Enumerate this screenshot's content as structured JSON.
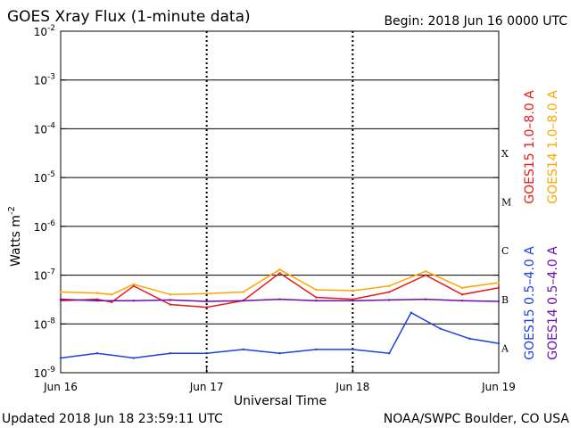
{
  "chart_data": {
    "type": "line",
    "title": "GOES Xray Flux (1-minute data)",
    "begin_label": "Begin:  2018 Jun 16 0000 UTC",
    "ylabel_base": "Watts m",
    "ylabel_exp": "-2",
    "xlabel": "Universal Time",
    "y_scale": "log",
    "ylim_exp": [
      -9,
      -2
    ],
    "y_ticks": [
      {
        "exp": -9,
        "mantissa": "10",
        "power": "-9"
      },
      {
        "exp": -8,
        "mantissa": "10",
        "power": "-8"
      },
      {
        "exp": -7,
        "mantissa": "10",
        "power": "-7"
      },
      {
        "exp": -6,
        "mantissa": "10",
        "power": "-6"
      },
      {
        "exp": -5,
        "mantissa": "10",
        "power": "-5"
      },
      {
        "exp": -4,
        "mantissa": "10",
        "power": "-4"
      },
      {
        "exp": -3,
        "mantissa": "10",
        "power": "-3"
      },
      {
        "exp": -2,
        "mantissa": "10",
        "power": "-2"
      }
    ],
    "x_ticks": [
      "Jun 16",
      "Jun 17",
      "Jun 18",
      "Jun 19"
    ],
    "x_range_days": [
      0,
      3
    ],
    "flare_classes": [
      {
        "label": "X",
        "level_exp": -4
      },
      {
        "label": "M",
        "level_exp": -5
      },
      {
        "label": "C",
        "level_exp": -6
      },
      {
        "label": "B",
        "level_exp": -7
      },
      {
        "label": "A",
        "level_exp": -8
      }
    ],
    "series": [
      {
        "name": "GOES15 1.0–8.0 A",
        "color": "#e8191b",
        "channel": "long",
        "x": [
          0,
          0.25,
          0.35,
          0.5,
          0.75,
          1.0,
          1.25,
          1.5,
          1.75,
          2.0,
          2.25,
          2.5,
          2.75,
          3.0
        ],
        "values": [
          3e-08,
          3.2e-08,
          2.8e-08,
          6e-08,
          2.5e-08,
          2.2e-08,
          3e-08,
          1.1e-07,
          3.5e-08,
          3.2e-08,
          4.5e-08,
          1e-07,
          4e-08,
          5.5e-08
        ]
      },
      {
        "name": "GOES14 1.0–8.0 A",
        "color": "#ffa500",
        "channel": "long",
        "x": [
          0,
          0.25,
          0.35,
          0.5,
          0.75,
          1.0,
          1.25,
          1.5,
          1.75,
          2.0,
          2.25,
          2.5,
          2.75,
          3.0
        ],
        "values": [
          4.5e-08,
          4.3e-08,
          4e-08,
          6.5e-08,
          4e-08,
          4.2e-08,
          4.5e-08,
          1.3e-07,
          5e-08,
          4.8e-08,
          6e-08,
          1.2e-07,
          5.5e-08,
          7e-08
        ]
      },
      {
        "name": "GOES15 0.5–4.0 A",
        "color": "#1f3fe0",
        "channel": "short",
        "x": [
          0,
          0.25,
          0.5,
          0.75,
          1.0,
          1.25,
          1.5,
          1.75,
          2.0,
          2.25,
          2.4,
          2.6,
          2.8,
          3.0
        ],
        "values": [
          2e-09,
          2.5e-09,
          2e-09,
          2.5e-09,
          2.5e-09,
          3e-09,
          2.5e-09,
          3e-09,
          3e-09,
          2.5e-09,
          1.7e-08,
          8e-09,
          5e-09,
          4e-09
        ]
      },
      {
        "name": "GOES14 0.5–4.0 A",
        "color": "#6a0dad",
        "channel": "short",
        "x": [
          0,
          0.25,
          0.5,
          0.75,
          1.0,
          1.25,
          1.5,
          1.75,
          2.0,
          2.25,
          2.5,
          2.75,
          3.0
        ],
        "values": [
          3.2e-08,
          3e-08,
          3e-08,
          3.1e-08,
          2.9e-08,
          3e-08,
          3.2e-08,
          3e-08,
          3e-08,
          3.1e-08,
          3.2e-08,
          3e-08,
          2.9e-08
        ]
      }
    ],
    "legend_right": [
      {
        "text": "GOES15 1.0–8.0 A",
        "color": "#e8191b"
      },
      {
        "text": "GOES14 1.0–8.0 A",
        "color": "#ffa500"
      }
    ],
    "legend_right_lower": [
      {
        "text": "GOES15 0.5–4.0 A",
        "color": "#1f3fe0"
      },
      {
        "text": "GOES14 0.5–4.0 A",
        "color": "#6a0dad"
      }
    ],
    "grid": true
  },
  "footer": {
    "updated": "Updated 2018 Jun 18 23:59:11 UTC",
    "source": "NOAA/SWPC Boulder, CO USA"
  }
}
